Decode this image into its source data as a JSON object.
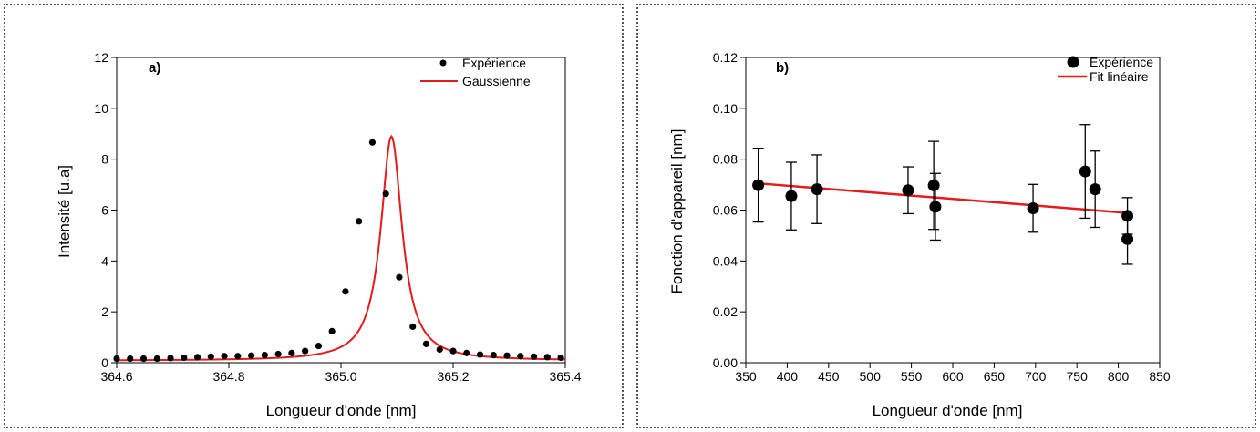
{
  "chart_data": [
    {
      "type": "scatter",
      "panel_label": "a)",
      "xlabel": "Longueur d'onde  [nm]",
      "ylabel": "Intensité  [u.a]",
      "xlim": [
        364.6,
        365.4
      ],
      "ylim": [
        0,
        12
      ],
      "xticks": [
        "364.6",
        "364.8",
        "365.0",
        "365.2",
        "365.4"
      ],
      "yticks": [
        "0",
        "2",
        "4",
        "6",
        "8",
        "10",
        "12"
      ],
      "legend_position": "top-right",
      "series": [
        {
          "name": "Expérience",
          "kind": "points",
          "color": "#000000",
          "x": [
            364.6,
            364.624,
            364.648,
            364.672,
            364.696,
            364.72,
            364.744,
            364.768,
            364.792,
            364.816,
            364.84,
            364.864,
            364.888,
            364.912,
            364.936,
            364.96,
            364.984,
            365.008,
            365.032,
            365.056,
            365.08,
            365.104,
            365.128,
            365.152,
            365.176,
            365.2,
            365.224,
            365.248,
            365.272,
            365.296,
            365.32,
            365.344,
            365.368,
            365.392
          ],
          "y": [
            0.16,
            0.16,
            0.16,
            0.16,
            0.18,
            0.2,
            0.22,
            0.24,
            0.26,
            0.26,
            0.28,
            0.3,
            0.34,
            0.38,
            0.46,
            0.66,
            1.24,
            2.8,
            5.56,
            8.66,
            6.64,
            3.36,
            1.42,
            0.74,
            0.52,
            0.46,
            0.38,
            0.32,
            0.3,
            0.28,
            0.26,
            0.24,
            0.22,
            0.2
          ]
        },
        {
          "name": "Gaussienne",
          "kind": "curve",
          "color": "#e41a1c",
          "peak_x": 365.09,
          "peak_y": 8.9,
          "hwhm": 0.023,
          "baseline": 0.08
        }
      ]
    },
    {
      "type": "scatter",
      "panel_label": "b)",
      "xlabel": "Longueur d'onde  [nm]",
      "ylabel": "Fonction d'appareil  [nm]",
      "xlim": [
        350,
        850
      ],
      "ylim": [
        0.0,
        0.12
      ],
      "xticks": [
        "350",
        "400",
        "450",
        "500",
        "550",
        "600",
        "650",
        "700",
        "750",
        "800",
        "850"
      ],
      "yticks": [
        "0.00",
        "0.02",
        "0.04",
        "0.06",
        "0.08",
        "0.10",
        "0.12"
      ],
      "legend_position": "top-right",
      "series": [
        {
          "name": "Expérience",
          "kind": "points_with_error",
          "color": "#000000",
          "x": [
            365,
            405,
            436,
            546,
            577,
            579,
            697,
            760,
            772,
            811,
            811
          ],
          "y": [
            0.0698,
            0.0655,
            0.0682,
            0.0678,
            0.0697,
            0.0613,
            0.0607,
            0.0752,
            0.0682,
            0.0577,
            0.0486
          ],
          "err": [
            0.0145,
            0.0133,
            0.0135,
            0.0092,
            0.0173,
            0.0131,
            0.0094,
            0.0184,
            0.015,
            0.0072,
            0.0099
          ]
        },
        {
          "name": "Fit linéaire",
          "kind": "line",
          "color": "#e41a1c",
          "x": [
            365,
            811
          ],
          "y": [
            0.0705,
            0.0589
          ]
        }
      ]
    }
  ]
}
